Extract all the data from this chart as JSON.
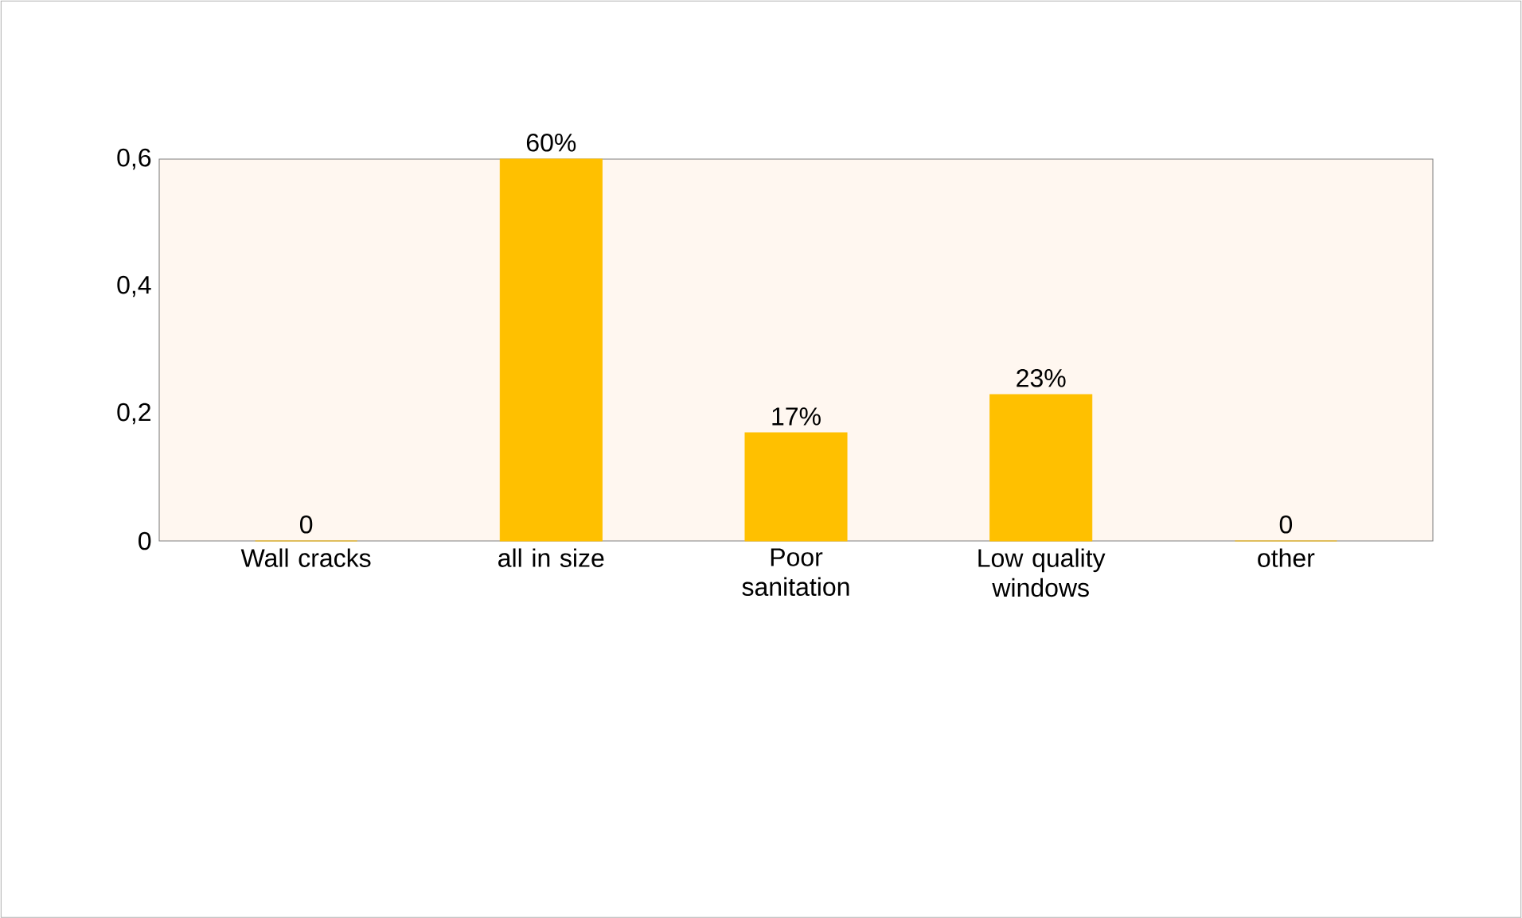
{
  "chart_data": {
    "type": "bar",
    "categories": [
      "Wall cracks",
      "all in size",
      "Poor sanitation",
      "Low quality windows",
      "other"
    ],
    "values": [
      0,
      0.6,
      0.17,
      0.23,
      0
    ],
    "value_labels": [
      "0",
      "60%",
      "17%",
      "23%",
      "0"
    ],
    "color": "#ffc000",
    "ylim": [
      0,
      0.6
    ],
    "yticks": [
      0,
      {
        "value": 0.2,
        "label": "0,2"
      },
      {
        "value": 0.4,
        "label": "0,4"
      },
      {
        "value": 0.6,
        "label": "0,6"
      }
    ],
    "grid": false
  }
}
